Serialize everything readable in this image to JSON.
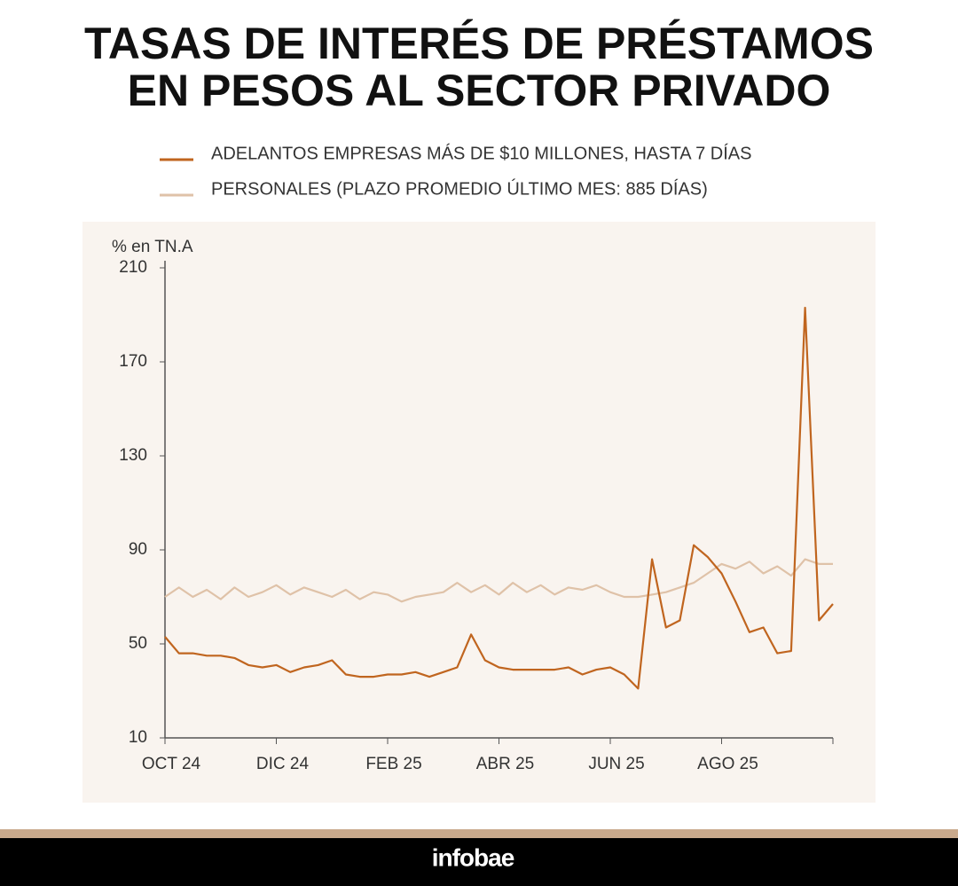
{
  "chart_data": {
    "type": "line",
    "title": [
      "TASAS DE INTERÉS DE PRÉSTAMOS",
      "EN PESOS AL SECTOR PRIVADO"
    ],
    "y_label": "% en TN.A",
    "categories": [
      "OCT 24",
      null,
      null,
      null,
      null,
      null,
      null,
      null,
      "DIC 24",
      null,
      null,
      null,
      null,
      null,
      null,
      null,
      "FEB 25",
      null,
      null,
      null,
      null,
      null,
      null,
      null,
      "ABR 25",
      null,
      null,
      null,
      null,
      null,
      null,
      null,
      "JUN 25",
      null,
      null,
      null,
      null,
      null,
      null,
      null,
      "AGO 25",
      null,
      null,
      null,
      null,
      null,
      null,
      null,
      null
    ],
    "series": [
      {
        "name": "ADELANTOS EMPRESAS MÁS DE $10 MILLONES, HASTA 7 DÍAS",
        "color": "#c0651f",
        "values": [
          53,
          46,
          46,
          45,
          45,
          44,
          41,
          40,
          41,
          38,
          40,
          41,
          43,
          37,
          36,
          36,
          37,
          37,
          38,
          36,
          38,
          40,
          54,
          43,
          40,
          39,
          39,
          39,
          39,
          40,
          37,
          39,
          40,
          37,
          31,
          86,
          57,
          60,
          92,
          87,
          80,
          68,
          55,
          57,
          46,
          47,
          193,
          60,
          67
        ]
      },
      {
        "name": "PERSONALES (PLAZO PROMEDIO ÚLTIMO MES: 885 DÍAS)",
        "color": "#dfc2a8",
        "values": [
          70,
          74,
          70,
          73,
          69,
          74,
          70,
          72,
          75,
          71,
          74,
          72,
          70,
          73,
          69,
          72,
          71,
          68,
          70,
          71,
          72,
          76,
          72,
          75,
          71,
          76,
          72,
          75,
          71,
          74,
          73,
          75,
          72,
          70,
          70,
          71,
          72,
          74,
          76,
          80,
          84,
          82,
          85,
          80,
          83,
          79,
          86,
          84,
          84
        ]
      }
    ],
    "ylim": [
      10,
      210
    ],
    "yticks": [
      10,
      50,
      90,
      130,
      170,
      210
    ],
    "grid": false,
    "footer": "infobae"
  }
}
